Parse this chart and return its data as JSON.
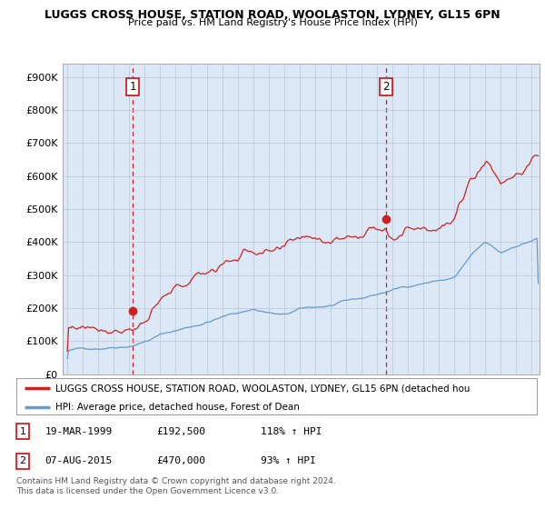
{
  "title": "LUGGS CROSS HOUSE, STATION ROAD, WOOLASTON, LYDNEY, GL15 6PN",
  "subtitle": "Price paid vs. HM Land Registry's House Price Index (HPI)",
  "ytick_values": [
    0,
    100000,
    200000,
    300000,
    400000,
    500000,
    600000,
    700000,
    800000,
    900000
  ],
  "xlim_start": 1994.7,
  "xlim_end": 2025.5,
  "ylim": [
    0,
    940000
  ],
  "hpi_color": "#6699cc",
  "price_color": "#cc2222",
  "dashed_line_color": "#cc2222",
  "plot_bg_color": "#dce8f5",
  "marker1_x": 1999.22,
  "marker1_y": 192500,
  "marker2_x": 2015.59,
  "marker2_y": 470000,
  "legend_house": "LUGGS CROSS HOUSE, STATION ROAD, WOOLASTON, LYDNEY, GL15 6PN (detached hou",
  "legend_hpi": "HPI: Average price, detached house, Forest of Dean",
  "annotation1": "1",
  "annotation2": "2",
  "table_row1": [
    "1",
    "19-MAR-1999",
    "£192,500",
    "118% ↑ HPI"
  ],
  "table_row2": [
    "2",
    "07-AUG-2015",
    "£470,000",
    "93% ↑ HPI"
  ],
  "footer": "Contains HM Land Registry data © Crown copyright and database right 2024.\nThis data is licensed under the Open Government Licence v3.0.",
  "background_color": "#ffffff",
  "grid_color": "#bbccdd"
}
